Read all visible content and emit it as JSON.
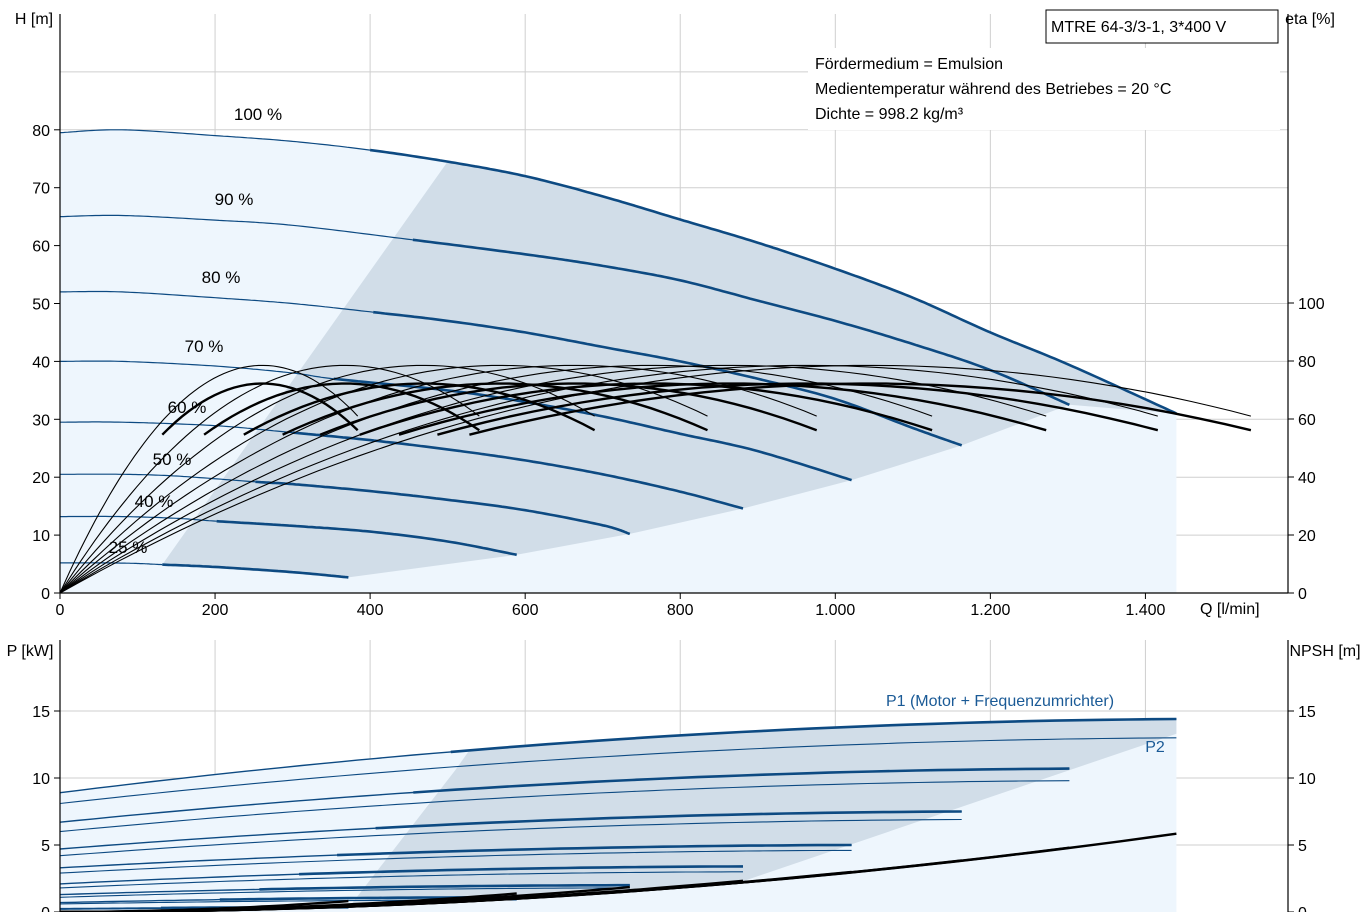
{
  "colors": {
    "curve": "#0d4a82",
    "area_light": "#eef6fd",
    "area_dark": "#d1dde8",
    "grid": "#cfcfcf",
    "label_blue": "#1a5a96",
    "eta": "#000000"
  },
  "header": {
    "model": "MTRE 64-3/3-1, 3*400 V",
    "info": [
      "Fördermedium = Emulsion",
      "Medientemperatur während des Betriebes = 20 °C",
      "Dichte = 998.2 kg/m³"
    ]
  },
  "chart_data": [
    {
      "type": "line",
      "title": "",
      "xlabel": "Q [l/min]",
      "ylabel": "H [m]",
      "ylabel_right": "eta [%]",
      "xlim": [
        0,
        1450
      ],
      "ylim": [
        0,
        100
      ],
      "ylim_right": [
        0,
        100
      ],
      "x_ticks": [
        "0",
        "200",
        "400",
        "600",
        "800",
        "1.000",
        "1.200",
        "1.400"
      ],
      "y_ticks": [
        "0",
        "10",
        "20",
        "30",
        "40",
        "50",
        "60",
        "70",
        "80"
      ],
      "y_ticks_right": [
        "0",
        "20",
        "40",
        "60",
        "80",
        "100"
      ],
      "speed_labels": [
        "100 %",
        "90 %",
        "80 %",
        "70 %",
        "60 %",
        "50 %",
        "40 %",
        "25 %"
      ],
      "head_curves": [
        {
          "speed": "100 %",
          "x": [
            0,
            80,
            200,
            300,
            400,
            500,
            600,
            700,
            800,
            900,
            1000,
            1100,
            1200,
            1300,
            1440
          ],
          "y": [
            79.5,
            80,
            79,
            78,
            76.5,
            74.5,
            72,
            68.5,
            64.5,
            60.5,
            56,
            51,
            45,
            39.5,
            31
          ]
        },
        {
          "speed": "90 %",
          "x": [
            0,
            80,
            200,
            300,
            455,
            600,
            700,
            800,
            900,
            1000,
            1100,
            1200,
            1302
          ],
          "y": [
            65,
            65.2,
            64.4,
            63.5,
            61,
            58.5,
            56.5,
            54,
            50.5,
            47,
            43,
            38.5,
            32.5
          ]
        },
        {
          "speed": "80 %",
          "x": [
            0,
            80,
            200,
            300,
            404,
            500,
            600,
            700,
            800,
            900,
            1000,
            1100,
            1163
          ],
          "y": [
            52,
            52,
            51,
            50,
            48.5,
            47,
            45,
            42.5,
            40,
            37,
            33.5,
            28.5,
            25.5
          ]
        },
        {
          "speed": "70 %",
          "x": [
            0,
            80,
            200,
            300,
            353,
            500,
            600,
            700,
            800,
            900,
            1021
          ],
          "y": [
            40,
            40,
            39.2,
            38,
            37,
            35,
            33,
            30.5,
            27.5,
            24.5,
            19.5
          ]
        },
        {
          "speed": "60 %",
          "x": [
            0,
            80,
            200,
            300,
            400,
            500,
            600,
            700,
            800,
            881
          ],
          "y": [
            29.5,
            29.5,
            28.9,
            27.7,
            26.4,
            24.8,
            22.9,
            20.5,
            17.5,
            14.6
          ]
        },
        {
          "speed": "50 %",
          "x": [
            0,
            80,
            150,
            252,
            300,
            400,
            500,
            600,
            700,
            735
          ],
          "y": [
            20.5,
            20.5,
            20.2,
            19.2,
            18.8,
            17.6,
            16.1,
            14.3,
            11.7,
            10.2
          ]
        },
        {
          "speed": "40 %",
          "x": [
            0,
            80,
            150,
            202,
            300,
            400,
            500,
            589
          ],
          "y": [
            13.2,
            13.2,
            12.9,
            12.4,
            11.6,
            10.6,
            8.9,
            6.6
          ]
        },
        {
          "speed": "25 %",
          "x": [
            0,
            60,
            100,
            132,
            200,
            300,
            372
          ],
          "y": [
            5.2,
            5.2,
            5.1,
            4.9,
            4.5,
            3.6,
            2.7
          ]
        }
      ],
      "eta_curves": {
        "q_bep": [
          240,
          338,
          431,
          522,
          610,
          703,
          795,
          885,
          960
        ],
        "eta_bep": 78,
        "q_end_factor": 1.6
      }
    },
    {
      "type": "line",
      "title": "",
      "ylabel": "P [kW]",
      "ylabel_right": "NPSH [m]",
      "xlim": [
        0,
        1450
      ],
      "ylim": [
        0,
        17.5
      ],
      "ylim_right": [
        0,
        17.5
      ],
      "y_ticks": [
        "0",
        "5",
        "10",
        "15"
      ],
      "y_ticks_right": [
        "0",
        "5",
        "10",
        "15"
      ],
      "series_labels": {
        "p1": "P1 (Motor + Frequenzumrichter)",
        "p2": "P2"
      },
      "power_p1": {
        "q_end": [
          1440,
          1302,
          1163,
          1021,
          881,
          735,
          589,
          372
        ],
        "p_start": [
          8.9,
          6.7,
          4.7,
          3.3,
          2.1,
          1.3,
          0.7,
          0.25
        ],
        "p_end": [
          14.4,
          10.7,
          7.5,
          5.0,
          3.4,
          2.0,
          1.1,
          0.35
        ]
      },
      "power_p2": {
        "q_end": [
          1440,
          1302,
          1163,
          1021,
          881,
          735,
          589,
          372
        ],
        "p_start": [
          8.1,
          6.0,
          4.2,
          2.9,
          1.8,
          1.1,
          0.6,
          0.2
        ],
        "p_end": [
          13.0,
          9.8,
          6.9,
          4.6,
          3.0,
          1.8,
          0.9,
          0.3
        ]
      },
      "npsh": {
        "q_end": [
          1440,
          1302,
          1163,
          1021,
          881,
          735,
          589,
          372
        ],
        "npsh_end": [
          6.1,
          5.0,
          4.0,
          3.1,
          2.4,
          1.9,
          1.4,
          0.8
        ]
      }
    }
  ]
}
